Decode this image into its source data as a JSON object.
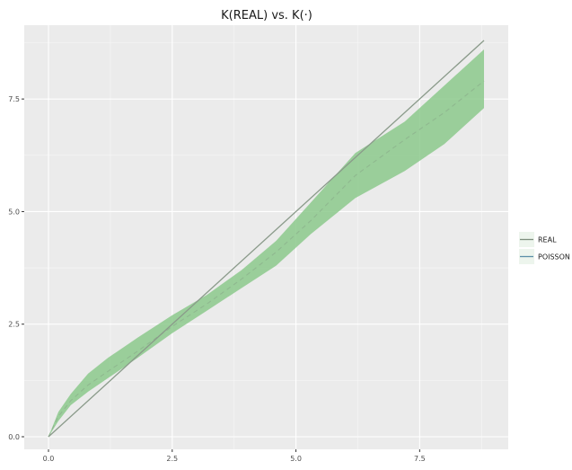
{
  "chart_data": {
    "type": "line",
    "title": "K(REAL) vs. K(·)",
    "xlabel": "",
    "ylabel": "",
    "xlim": [
      0,
      8.8
    ],
    "ylim": [
      0,
      8.8
    ],
    "x_ticks": [
      0.0,
      2.5,
      5.0,
      7.5
    ],
    "y_ticks": [
      0.0,
      2.5,
      5.0,
      7.5
    ],
    "x_tick_labels": [
      "0.0",
      "2.5",
      "5.0",
      "7.5"
    ],
    "y_tick_labels": [
      "0.0",
      "2.5",
      "5.0",
      "7.5"
    ],
    "grid": true,
    "legend_position": "right",
    "legend": [
      {
        "label": "REAL",
        "color": "#7f8f7f"
      },
      {
        "label": "POISSON",
        "color": "#5b8fa8"
      }
    ],
    "series": [
      {
        "name": "REAL",
        "style": "solid",
        "color": "#8a9a8a",
        "x": [
          0,
          8.8
        ],
        "y": [
          0,
          8.8
        ]
      },
      {
        "name": "POISSON",
        "style": "dashed",
        "color": "#8fb88f",
        "x": [
          0,
          0.2,
          0.45,
          0.8,
          1.2,
          1.8,
          2.5,
          3.2,
          3.9,
          4.6,
          5.3,
          6.2,
          7.2,
          8.0,
          8.8
        ],
        "y": [
          0,
          0.45,
          0.8,
          1.15,
          1.45,
          1.9,
          2.45,
          2.95,
          3.5,
          4.1,
          4.8,
          5.8,
          6.6,
          7.2,
          7.9
        ]
      }
    ],
    "envelope": {
      "color": "#8cc98c",
      "x": [
        0,
        0.2,
        0.45,
        0.8,
        1.2,
        1.8,
        2.5,
        3.2,
        3.9,
        4.6,
        5.3,
        6.2,
        7.2,
        8.0,
        8.8
      ],
      "lower": [
        0,
        0.35,
        0.7,
        1.0,
        1.3,
        1.75,
        2.3,
        2.8,
        3.3,
        3.8,
        4.5,
        5.3,
        5.9,
        6.5,
        7.3
      ],
      "upper": [
        0,
        0.55,
        0.95,
        1.4,
        1.75,
        2.2,
        2.7,
        3.15,
        3.7,
        4.35,
        5.2,
        6.3,
        7.0,
        7.8,
        8.6
      ]
    }
  }
}
